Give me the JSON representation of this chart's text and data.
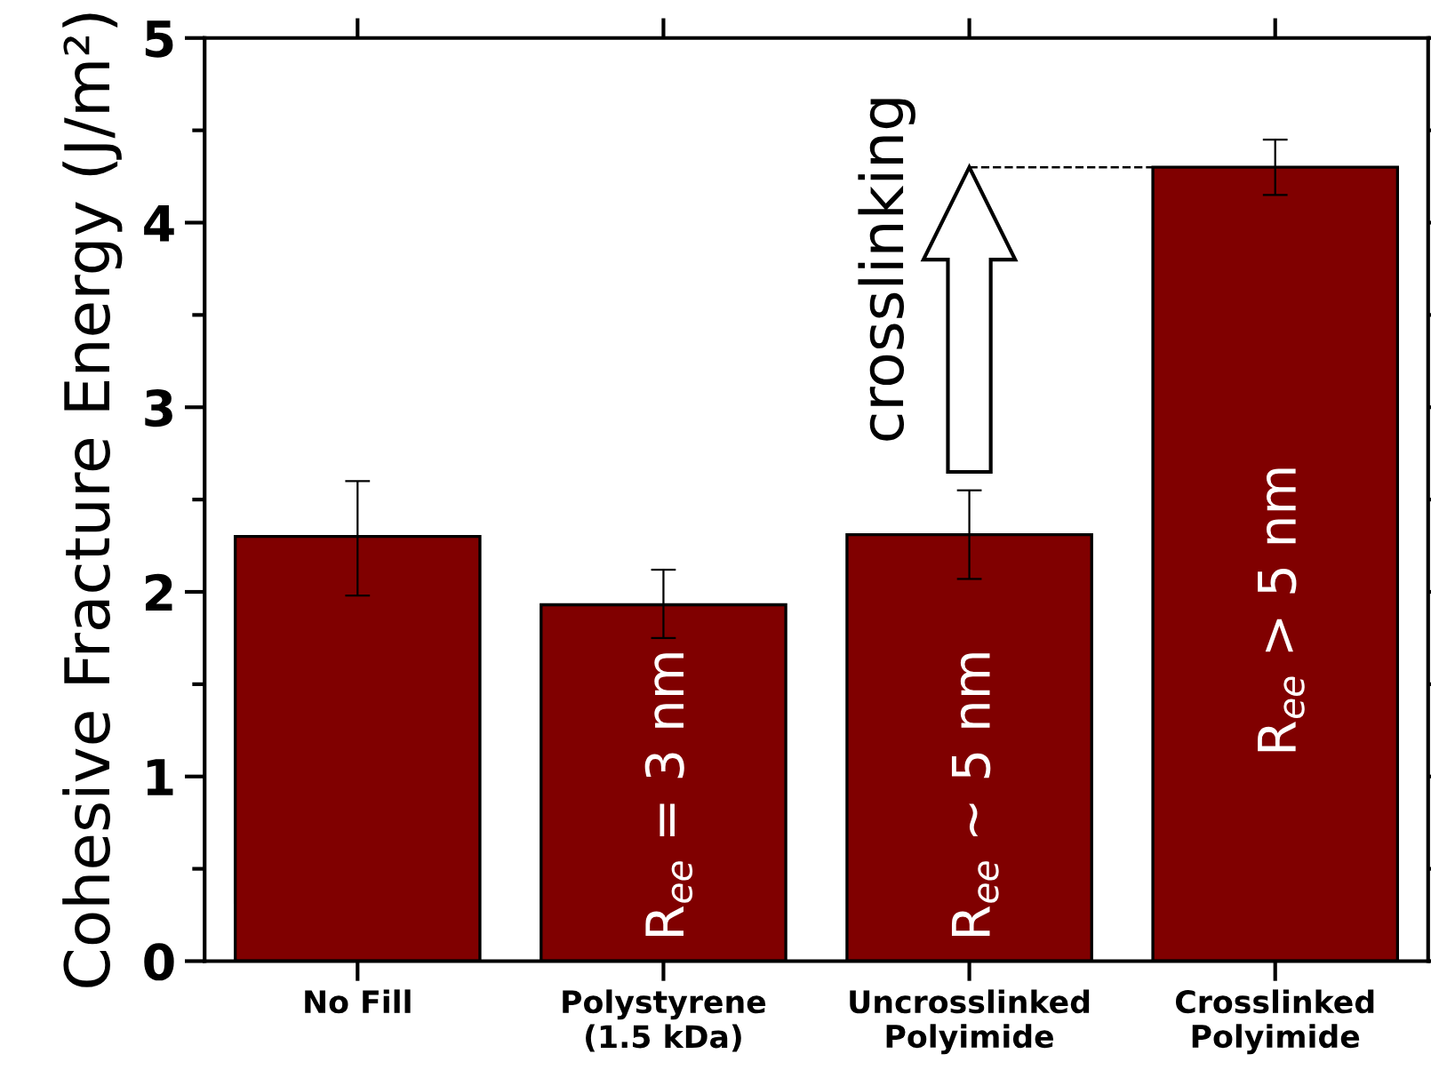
{
  "chart_data": {
    "type": "bar",
    "categories": [
      "No Fill",
      "Polystyrene\n(1.5 kDa)",
      "Uncrosslinked\nPolyimide",
      "Crosslinked\nPolyimide"
    ],
    "values": [
      2.3,
      1.93,
      2.31,
      4.3
    ],
    "errors": [
      [
        1.98,
        2.6
      ],
      [
        1.75,
        2.12
      ],
      [
        2.07,
        2.55
      ],
      [
        4.15,
        4.45
      ]
    ],
    "color": "#800000",
    "ylabel": "Cohesive Fracture Energy (J/m²)",
    "ylim": [
      0,
      5
    ],
    "yticks": [
      0,
      1,
      2,
      3,
      4,
      5
    ],
    "ref_lines": [
      {
        "axis": "y",
        "value": 4.3,
        "line_style": "dashed",
        "color": "#000000"
      }
    ],
    "annotations": [
      "R$_{ee}$ = 3 nm",
      "R$_{ee}$ ~ 5 nm",
      "R$_{ee}$ > 5 nm",
      "crosslinking"
    ],
    "grid": false,
    "legend": false
  }
}
